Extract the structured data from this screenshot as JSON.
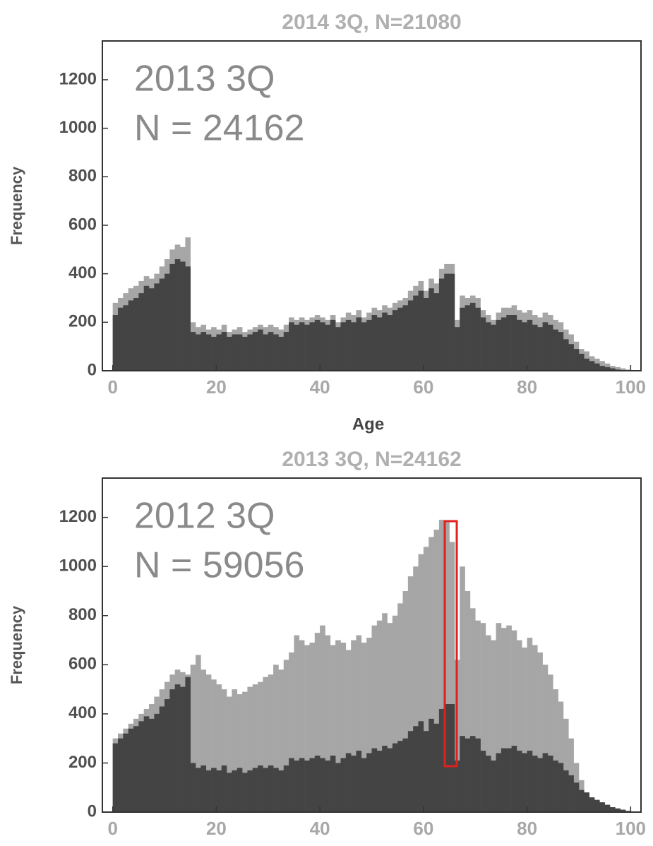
{
  "chart_data": [
    {
      "type": "histogram",
      "title": "2014 3Q, N=21080",
      "annotation": [
        "2013 3Q",
        "N = 24162"
      ],
      "xlabel": "Age",
      "ylabel": "Frequency",
      "bins": [
        0,
        1,
        2,
        3,
        4,
        5,
        6,
        7,
        8,
        9,
        10,
        11,
        12,
        13,
        14,
        15,
        16,
        17,
        18,
        19,
        20,
        21,
        22,
        23,
        24,
        25,
        26,
        27,
        28,
        29,
        30,
        31,
        32,
        33,
        34,
        35,
        36,
        37,
        38,
        39,
        40,
        41,
        42,
        43,
        44,
        45,
        46,
        47,
        48,
        49,
        50,
        51,
        52,
        53,
        54,
        55,
        56,
        57,
        58,
        59,
        60,
        61,
        62,
        63,
        64,
        65,
        66,
        67,
        68,
        69,
        70,
        71,
        72,
        73,
        74,
        75,
        76,
        77,
        78,
        79,
        80,
        81,
        82,
        83,
        84,
        85,
        86,
        87,
        88,
        89,
        90,
        91,
        92,
        93,
        94,
        95,
        96,
        97,
        98,
        99,
        100
      ],
      "series": [
        {
          "color": "#a6a6a6",
          "values": [
            280,
            300,
            320,
            340,
            350,
            370,
            390,
            380,
            400,
            430,
            460,
            500,
            520,
            510,
            550,
            200,
            180,
            190,
            170,
            180,
            170,
            190,
            160,
            170,
            180,
            160,
            170,
            180,
            190,
            180,
            190,
            180,
            170,
            190,
            220,
            210,
            220,
            210,
            220,
            230,
            220,
            210,
            230,
            200,
            220,
            240,
            230,
            250,
            220,
            240,
            260,
            250,
            270,
            260,
            280,
            290,
            300,
            330,
            350,
            370,
            330,
            380,
            360,
            420,
            440,
            440,
            210,
            310,
            300,
            310,
            300,
            250,
            230,
            210,
            240,
            260,
            260,
            270,
            250,
            240,
            250,
            230,
            220,
            240,
            230,
            210,
            200,
            170,
            150,
            120,
            90,
            80,
            60,
            50,
            40,
            30,
            20,
            15,
            10,
            5
          ]
        },
        {
          "color": "#444444",
          "values": [
            230,
            260,
            270,
            290,
            300,
            320,
            350,
            340,
            360,
            380,
            400,
            440,
            460,
            450,
            430,
            160,
            150,
            160,
            150,
            140,
            150,
            160,
            140,
            150,
            150,
            140,
            150,
            160,
            170,
            150,
            160,
            150,
            140,
            160,
            200,
            190,
            200,
            190,
            200,
            210,
            200,
            190,
            210,
            180,
            200,
            210,
            200,
            220,
            200,
            210,
            230,
            220,
            240,
            230,
            250,
            260,
            270,
            290,
            310,
            330,
            300,
            340,
            320,
            380,
            400,
            400,
            180,
            260,
            270,
            280,
            260,
            220,
            200,
            190,
            210,
            220,
            230,
            230,
            210,
            200,
            210,
            190,
            180,
            200,
            190,
            170,
            160,
            130,
            110,
            90,
            70,
            50,
            40,
            30,
            20,
            15,
            10,
            5,
            3,
            2
          ]
        }
      ],
      "xlim": [
        -2,
        102
      ],
      "ylim": [
        0,
        1360
      ],
      "xticks": [
        0,
        20,
        40,
        60,
        80,
        100
      ],
      "yticks": [
        0,
        200,
        400,
        600,
        800,
        1000,
        1200
      ]
    },
    {
      "type": "histogram",
      "title": "2013 3Q, N=24162",
      "annotation": [
        "2012 3Q",
        "N = 59056"
      ],
      "ylabel": "Frequency",
      "bins": [
        0,
        1,
        2,
        3,
        4,
        5,
        6,
        7,
        8,
        9,
        10,
        11,
        12,
        13,
        14,
        15,
        16,
        17,
        18,
        19,
        20,
        21,
        22,
        23,
        24,
        25,
        26,
        27,
        28,
        29,
        30,
        31,
        32,
        33,
        34,
        35,
        36,
        37,
        38,
        39,
        40,
        41,
        42,
        43,
        44,
        45,
        46,
        47,
        48,
        49,
        50,
        51,
        52,
        53,
        54,
        55,
        56,
        57,
        58,
        59,
        60,
        61,
        62,
        63,
        64,
        65,
        66,
        67,
        68,
        69,
        70,
        71,
        72,
        73,
        74,
        75,
        76,
        77,
        78,
        79,
        80,
        81,
        82,
        83,
        84,
        85,
        86,
        87,
        88,
        89,
        90,
        91,
        92,
        93,
        94,
        95,
        96,
        97,
        98,
        99,
        100
      ],
      "series": [
        {
          "color": "#a6a6a6",
          "values": [
            300,
            320,
            340,
            360,
            380,
            400,
            420,
            440,
            470,
            500,
            530,
            560,
            580,
            570,
            560,
            600,
            640,
            580,
            560,
            540,
            520,
            500,
            470,
            500,
            480,
            490,
            510,
            520,
            530,
            550,
            560,
            600,
            580,
            620,
            650,
            720,
            700,
            680,
            690,
            730,
            760,
            720,
            680,
            700,
            690,
            660,
            700,
            720,
            690,
            710,
            760,
            780,
            810,
            770,
            800,
            850,
            900,
            960,
            1000,
            1050,
            1080,
            1120,
            1150,
            1190,
            1180,
            1100,
            620,
            1000,
            900,
            830,
            780,
            770,
            720,
            700,
            770,
            750,
            760,
            740,
            700,
            670,
            710,
            680,
            650,
            600,
            560,
            500,
            450,
            380,
            300,
            200,
            130,
            80,
            60,
            40,
            30,
            20,
            10,
            8,
            4,
            2
          ]
        },
        {
          "color": "#444444",
          "values": [
            280,
            300,
            320,
            340,
            350,
            370,
            390,
            380,
            400,
            430,
            460,
            500,
            520,
            510,
            550,
            200,
            180,
            190,
            170,
            180,
            170,
            190,
            160,
            170,
            180,
            160,
            170,
            180,
            190,
            180,
            190,
            180,
            170,
            190,
            220,
            210,
            220,
            210,
            220,
            230,
            220,
            210,
            230,
            200,
            220,
            240,
            230,
            250,
            220,
            240,
            260,
            250,
            270,
            260,
            280,
            290,
            300,
            330,
            350,
            370,
            330,
            380,
            360,
            420,
            440,
            440,
            210,
            310,
            300,
            310,
            300,
            250,
            230,
            210,
            240,
            260,
            260,
            270,
            250,
            240,
            250,
            230,
            220,
            240,
            230,
            210,
            200,
            170,
            150,
            120,
            90,
            80,
            60,
            50,
            40,
            30,
            20,
            15,
            10,
            5
          ]
        }
      ],
      "xlim": [
        -2,
        102
      ],
      "ylim": [
        0,
        1360
      ],
      "xticks": [
        0,
        20,
        40,
        60,
        80,
        100
      ],
      "yticks": [
        0,
        200,
        400,
        600,
        800,
        1000,
        1200
      ]
    }
  ]
}
